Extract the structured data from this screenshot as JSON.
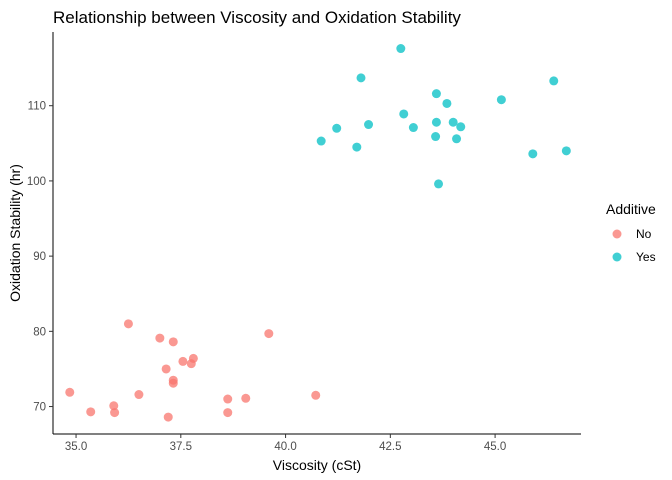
{
  "chart_data": {
    "type": "scatter",
    "title": "Relationship between Viscosity and Oxidation Stability",
    "xlabel": "Viscosity (cSt)",
    "ylabel": "Oxidation Stability (hr)",
    "xlim": [
      34.45,
      47.05
    ],
    "ylim": [
      66.35,
      119.8
    ],
    "x_ticks": [
      35.0,
      37.5,
      40.0,
      42.5,
      45.0
    ],
    "x_tick_labels": [
      "35.0",
      "37.5",
      "40.0",
      "42.5",
      "45.0"
    ],
    "y_ticks": [
      70,
      80,
      90,
      100,
      110
    ],
    "y_tick_labels": [
      "70",
      "80",
      "90",
      "100",
      "110"
    ],
    "grid": false,
    "legend": {
      "title": "Additive",
      "position": "right",
      "entries": [
        "No",
        "Yes"
      ]
    },
    "series": [
      {
        "name": "No",
        "color": "#F8766D",
        "points": [
          {
            "x": 34.85,
            "y": 71.9
          },
          {
            "x": 35.35,
            "y": 69.3
          },
          {
            "x": 35.9,
            "y": 70.1
          },
          {
            "x": 35.92,
            "y": 69.2
          },
          {
            "x": 36.5,
            "y": 71.6
          },
          {
            "x": 36.25,
            "y": 81.0
          },
          {
            "x": 37.0,
            "y": 79.1
          },
          {
            "x": 37.15,
            "y": 75.0
          },
          {
            "x": 37.2,
            "y": 68.6
          },
          {
            "x": 37.32,
            "y": 78.6
          },
          {
            "x": 37.32,
            "y": 73.5
          },
          {
            "x": 37.32,
            "y": 73.1
          },
          {
            "x": 37.55,
            "y": 76.0
          },
          {
            "x": 37.75,
            "y": 75.7
          },
          {
            "x": 37.8,
            "y": 76.4
          },
          {
            "x": 38.62,
            "y": 71.0
          },
          {
            "x": 38.62,
            "y": 69.2
          },
          {
            "x": 39.05,
            "y": 71.1
          },
          {
            "x": 39.6,
            "y": 79.7
          },
          {
            "x": 40.72,
            "y": 71.5
          }
        ]
      },
      {
        "name": "Yes",
        "color": "#00BFC4",
        "points": [
          {
            "x": 40.85,
            "y": 105.3
          },
          {
            "x": 41.22,
            "y": 107.0
          },
          {
            "x": 41.7,
            "y": 104.5
          },
          {
            "x": 41.8,
            "y": 113.7
          },
          {
            "x": 41.98,
            "y": 107.5
          },
          {
            "x": 42.75,
            "y": 117.6
          },
          {
            "x": 42.82,
            "y": 108.9
          },
          {
            "x": 43.05,
            "y": 107.1
          },
          {
            "x": 43.58,
            "y": 105.9
          },
          {
            "x": 43.6,
            "y": 107.8
          },
          {
            "x": 43.6,
            "y": 111.6
          },
          {
            "x": 43.65,
            "y": 99.6
          },
          {
            "x": 43.85,
            "y": 110.3
          },
          {
            "x": 44.0,
            "y": 107.8
          },
          {
            "x": 44.08,
            "y": 105.6
          },
          {
            "x": 44.18,
            "y": 107.2
          },
          {
            "x": 45.15,
            "y": 110.8
          },
          {
            "x": 45.9,
            "y": 103.6
          },
          {
            "x": 46.4,
            "y": 113.3
          },
          {
            "x": 46.7,
            "y": 104.0
          }
        ]
      }
    ]
  }
}
